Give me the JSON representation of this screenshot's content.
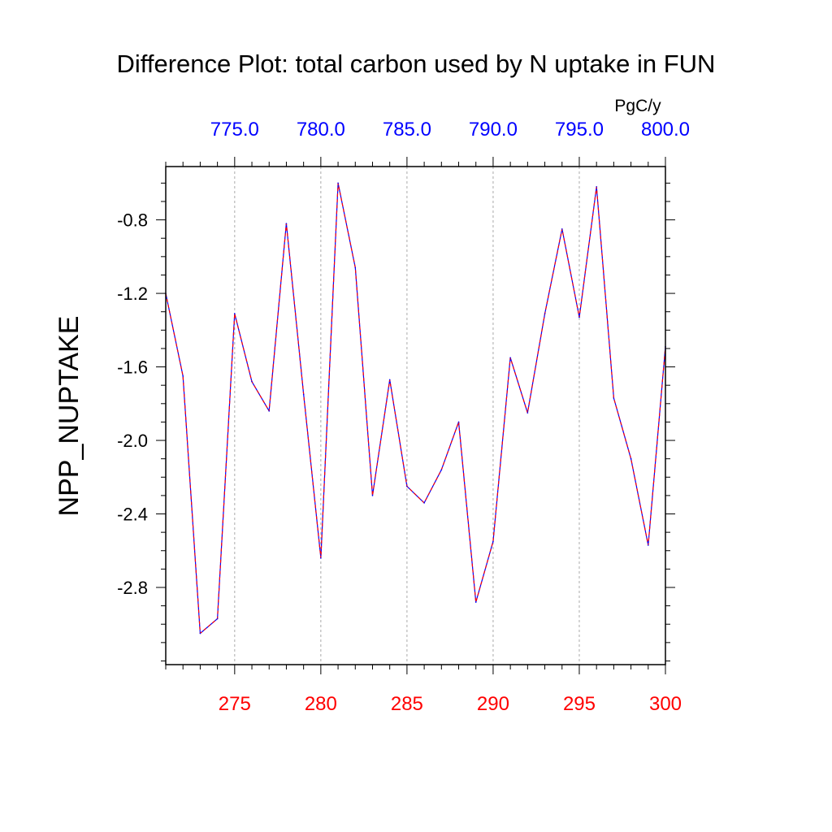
{
  "chart_data": {
    "type": "line",
    "title": "Difference Plot: total carbon used by N uptake in FUN",
    "units": "PgC/y",
    "ylabel": "NPP_NUPTAKE",
    "xlabel": "",
    "xlim": [
      271,
      300
    ],
    "ylim": [
      -3.22,
      -0.51
    ],
    "x_ticks": [
      275,
      280,
      285,
      290,
      295,
      300
    ],
    "x_tick_labels": [
      "275",
      "280",
      "285",
      "290",
      "295",
      "300"
    ],
    "x_tick_color": "#ff0000",
    "top_axis": {
      "tick_labels": [
        "775.0",
        "780.0",
        "785.0",
        "790.0",
        "795.0",
        "800.0"
      ],
      "tick_positions_bottom_units": [
        275,
        280,
        285,
        290,
        295,
        300
      ],
      "color": "#0000ff"
    },
    "y_ticks": [
      -0.8,
      -1.2,
      -1.6,
      -2.0,
      -2.4,
      -2.8
    ],
    "y_tick_labels": [
      "-0.8",
      "-1.2",
      "-1.6",
      "-2.0",
      "-2.4",
      "-2.8"
    ],
    "grid": "vertical dashed",
    "legend": "none",
    "series": [
      {
        "color_dash": "#ff0000",
        "color_solid": "#0000ff",
        "x": [
          271,
          272,
          273,
          274,
          275,
          276,
          277,
          278,
          279,
          280,
          281,
          282,
          283,
          284,
          285,
          286,
          287,
          288,
          289,
          290,
          291,
          292,
          293,
          294,
          295,
          296,
          297,
          298,
          299,
          300
        ],
        "values": [
          -1.2,
          -1.65,
          -3.05,
          -2.97,
          -1.31,
          -1.68,
          -1.84,
          -0.82,
          -1.75,
          -2.64,
          -0.6,
          -1.06,
          -2.3,
          -1.67,
          -2.25,
          -2.34,
          -2.16,
          -1.9,
          -2.88,
          -2.55,
          -1.55,
          -1.85,
          -1.31,
          -0.85,
          -1.33,
          -0.62,
          -1.77,
          -2.1,
          -2.57,
          -1.49
        ]
      }
    ]
  }
}
